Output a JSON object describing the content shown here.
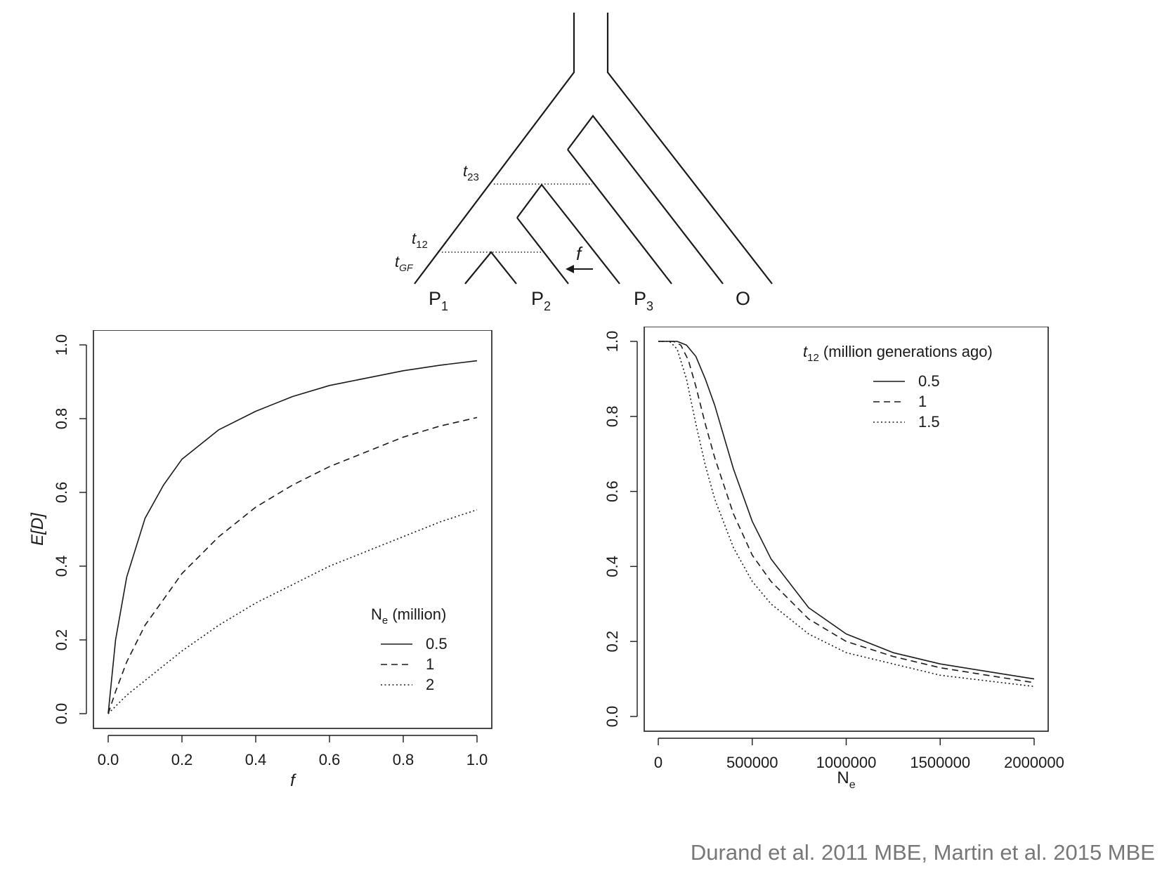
{
  "diagram": {
    "leaf_labels": [
      {
        "main": "P",
        "sub": "1"
      },
      {
        "main": "P",
        "sub": "2"
      },
      {
        "main": "P",
        "sub": "3"
      },
      {
        "main": "O",
        "sub": ""
      }
    ],
    "time_labels": [
      {
        "main": "t",
        "sub": "23"
      },
      {
        "main": "t",
        "sub": "12"
      },
      {
        "main": "t",
        "sub": "GF"
      }
    ],
    "gene_flow_label": "f"
  },
  "chart_data": [
    {
      "type": "line",
      "xlabel": "f",
      "ylabel": "E[D]",
      "xlim": [
        0,
        1
      ],
      "ylim": [
        0,
        1
      ],
      "xticks": [
        "0.0",
        "0.2",
        "0.4",
        "0.6",
        "0.8",
        "1.0"
      ],
      "yticks": [
        "0.0",
        "0.2",
        "0.4",
        "0.6",
        "0.8",
        "1.0"
      ],
      "legend": {
        "title_main": "N",
        "title_sub": "e",
        "title_rest": " (million)",
        "position": "bottom-right"
      },
      "series": [
        {
          "name": "0.5",
          "style": "solid",
          "x": [
            0,
            0.02,
            0.05,
            0.1,
            0.15,
            0.2,
            0.3,
            0.4,
            0.5,
            0.6,
            0.7,
            0.8,
            0.9,
            1.0
          ],
          "y": [
            0,
            0.2,
            0.37,
            0.53,
            0.62,
            0.69,
            0.77,
            0.82,
            0.86,
            0.89,
            0.91,
            0.93,
            0.945,
            0.957
          ]
        },
        {
          "name": "1",
          "style": "dashed",
          "x": [
            0,
            0.02,
            0.05,
            0.1,
            0.15,
            0.2,
            0.3,
            0.4,
            0.5,
            0.6,
            0.7,
            0.8,
            0.9,
            1.0
          ],
          "y": [
            0,
            0.06,
            0.14,
            0.24,
            0.31,
            0.38,
            0.48,
            0.56,
            0.62,
            0.67,
            0.71,
            0.75,
            0.78,
            0.803
          ]
        },
        {
          "name": "2",
          "style": "dotted",
          "x": [
            0,
            0.05,
            0.1,
            0.2,
            0.3,
            0.4,
            0.5,
            0.6,
            0.7,
            0.8,
            0.9,
            1.0
          ],
          "y": [
            0,
            0.05,
            0.09,
            0.17,
            0.24,
            0.3,
            0.35,
            0.4,
            0.44,
            0.48,
            0.52,
            0.553
          ]
        }
      ]
    },
    {
      "type": "line",
      "xlabel_main": "N",
      "xlabel_sub": "e",
      "ylabel": "E[D]",
      "xlim": [
        0,
        2000000
      ],
      "ylim": [
        0,
        1
      ],
      "xticks": [
        "0",
        "500000",
        "1000000",
        "1500000",
        "2000000"
      ],
      "yticks": [
        "0.0",
        "0.2",
        "0.4",
        "0.6",
        "0.8",
        "1.0"
      ],
      "legend": {
        "title_main": "t",
        "title_sub": "12",
        "title_rest": " (million generations ago)",
        "position": "top-right"
      },
      "series": [
        {
          "name": "0.5",
          "style": "solid",
          "x": [
            0,
            100000,
            150000,
            200000,
            250000,
            300000,
            400000,
            500000,
            600000,
            800000,
            1000000,
            1250000,
            1500000,
            1750000,
            2000000
          ],
          "y": [
            1.0,
            1.0,
            0.99,
            0.96,
            0.9,
            0.83,
            0.66,
            0.52,
            0.42,
            0.29,
            0.22,
            0.17,
            0.14,
            0.12,
            0.1
          ]
        },
        {
          "name": "1",
          "style": "dashed",
          "x": [
            0,
            80000,
            120000,
            160000,
            200000,
            250000,
            300000,
            400000,
            500000,
            600000,
            800000,
            1000000,
            1250000,
            1500000,
            1750000,
            2000000
          ],
          "y": [
            1.0,
            1.0,
            0.99,
            0.95,
            0.88,
            0.78,
            0.69,
            0.54,
            0.43,
            0.36,
            0.26,
            0.2,
            0.16,
            0.13,
            0.11,
            0.09
          ]
        },
        {
          "name": "1.5",
          "style": "dotted",
          "x": [
            0,
            60000,
            100000,
            150000,
            200000,
            250000,
            300000,
            400000,
            500000,
            600000,
            800000,
            1000000,
            1250000,
            1500000,
            1750000,
            2000000
          ],
          "y": [
            1.0,
            1.0,
            0.98,
            0.9,
            0.78,
            0.67,
            0.58,
            0.45,
            0.36,
            0.3,
            0.22,
            0.17,
            0.14,
            0.11,
            0.095,
            0.08
          ]
        }
      ]
    }
  ],
  "citation": "Durand et al. 2011 MBE, Martin et al. 2015 MBE"
}
